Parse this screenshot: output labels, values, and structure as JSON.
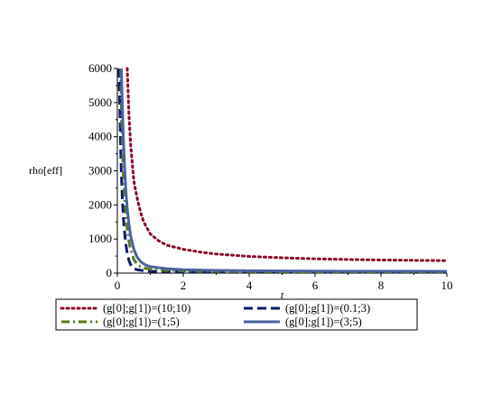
{
  "chart_data": {
    "type": "line",
    "title": "",
    "xlabel": "t",
    "ylabel": "rho[eff]",
    "xlim": [
      0,
      10
    ],
    "ylim": [
      0,
      6000
    ],
    "x_ticks": [
      0,
      2,
      4,
      6,
      8,
      10
    ],
    "y_ticks": [
      0,
      1000,
      2000,
      3000,
      4000,
      5000,
      6000
    ],
    "grid": false,
    "legend_position": "bottom",
    "series": [
      {
        "name": "(g[0];g[1])=(10;10)",
        "color": "#8b0a2a",
        "style": "dotted",
        "points": [
          [
            0.3,
            6000
          ],
          [
            0.35,
            4700
          ],
          [
            0.4,
            3800
          ],
          [
            0.5,
            2700
          ],
          [
            0.6,
            2200
          ],
          [
            0.7,
            1800
          ],
          [
            0.8,
            1500
          ],
          [
            1.0,
            1150
          ],
          [
            1.25,
            950
          ],
          [
            1.5,
            820
          ],
          [
            2.0,
            700
          ],
          [
            2.5,
            620
          ],
          [
            3.0,
            560
          ],
          [
            4.0,
            490
          ],
          [
            5.0,
            450
          ],
          [
            6.0,
            420
          ],
          [
            7.0,
            400
          ],
          [
            8.0,
            385
          ],
          [
            9.0,
            375
          ],
          [
            10.0,
            365
          ]
        ]
      },
      {
        "name": "(g[0];g[1])=(0.1;3)",
        "color": "#0a1a6e",
        "style": "dashed",
        "points": [
          [
            0.05,
            6000
          ],
          [
            0.08,
            4700
          ],
          [
            0.1,
            3700
          ],
          [
            0.12,
            3000
          ],
          [
            0.15,
            2200
          ],
          [
            0.2,
            1400
          ],
          [
            0.25,
            900
          ],
          [
            0.3,
            580
          ],
          [
            0.35,
            380
          ],
          [
            0.4,
            250
          ],
          [
            0.5,
            140
          ],
          [
            0.6,
            100
          ],
          [
            0.8,
            70
          ],
          [
            1.0,
            55
          ],
          [
            1.5,
            45
          ],
          [
            2.0,
            40
          ],
          [
            4.0,
            35
          ],
          [
            6.0,
            32
          ],
          [
            8.0,
            30
          ],
          [
            10.0,
            30
          ]
        ]
      },
      {
        "name": "(g[0];g[1])=(1;5)",
        "color": "#5a7a14",
        "style": "dashdot",
        "points": [
          [
            0.1,
            6000
          ],
          [
            0.13,
            4500
          ],
          [
            0.16,
            3400
          ],
          [
            0.2,
            2500
          ],
          [
            0.25,
            1800
          ],
          [
            0.3,
            1300
          ],
          [
            0.35,
            950
          ],
          [
            0.4,
            700
          ],
          [
            0.5,
            400
          ],
          [
            0.6,
            260
          ],
          [
            0.7,
            190
          ],
          [
            0.85,
            140
          ],
          [
            1.0,
            110
          ],
          [
            1.5,
            80
          ],
          [
            2.0,
            65
          ],
          [
            3.0,
            50
          ],
          [
            5.0,
            42
          ],
          [
            7.0,
            38
          ],
          [
            10.0,
            35
          ]
        ]
      },
      {
        "name": "(g[0];g[1])=(3;5)",
        "color": "#4a62a0",
        "style": "solid",
        "points": [
          [
            0.12,
            6000
          ],
          [
            0.15,
            5000
          ],
          [
            0.18,
            4000
          ],
          [
            0.22,
            3100
          ],
          [
            0.26,
            2400
          ],
          [
            0.3,
            1900
          ],
          [
            0.35,
            1450
          ],
          [
            0.4,
            1100
          ],
          [
            0.5,
            700
          ],
          [
            0.6,
            470
          ],
          [
            0.7,
            340
          ],
          [
            0.85,
            240
          ],
          [
            1.0,
            190
          ],
          [
            1.5,
            130
          ],
          [
            2.0,
            100
          ],
          [
            3.0,
            80
          ],
          [
            4.0,
            70
          ],
          [
            6.0,
            60
          ],
          [
            8.0,
            55
          ],
          [
            10.0,
            52
          ]
        ]
      }
    ]
  }
}
